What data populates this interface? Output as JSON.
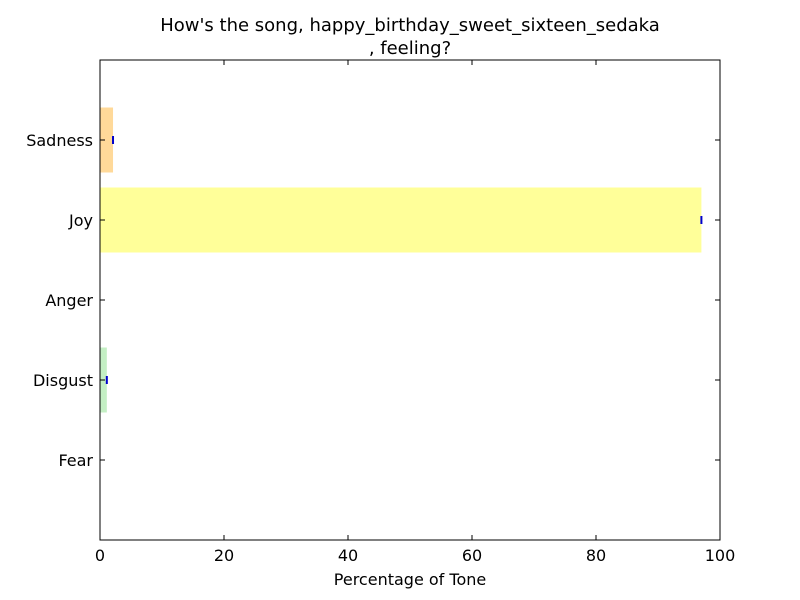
{
  "chart_data": {
    "type": "bar",
    "orientation": "horizontal",
    "title_lines": [
      "How's the song, happy_birthday_sweet_sixteen_sedaka",
      ", feeling?"
    ],
    "xlabel": "Percentage of Tone",
    "ylabel": "",
    "xlim": [
      0,
      100
    ],
    "x_ticks": [
      0,
      20,
      40,
      60,
      80,
      100
    ],
    "categories": [
      "Sadness",
      "Joy",
      "Anger",
      "Disgust",
      "Fear"
    ],
    "values": [
      2.1,
      97.0,
      0,
      1.1,
      0
    ],
    "colors": [
      "#ffd999",
      "#ffff99",
      "#e8c9c9",
      "#c4efc4",
      "#d9c8ff"
    ],
    "error_marker_color": "#0000cc",
    "grid": false,
    "legend": "none"
  }
}
